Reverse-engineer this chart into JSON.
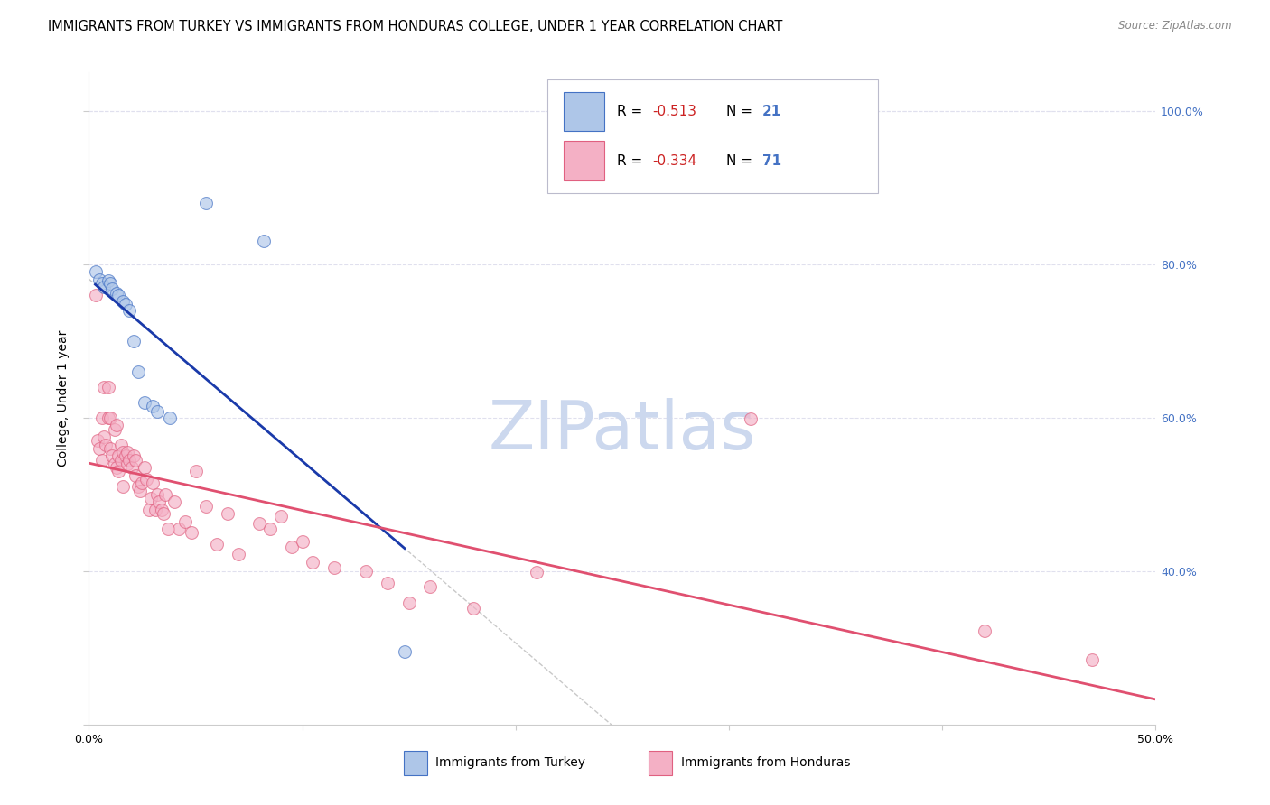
{
  "title": "IMMIGRANTS FROM TURKEY VS IMMIGRANTS FROM HONDURAS COLLEGE, UNDER 1 YEAR CORRELATION CHART",
  "source": "Source: ZipAtlas.com",
  "ylabel": "College, Under 1 year",
  "xlim": [
    0.0,
    0.5
  ],
  "ylim": [
    0.2,
    1.05
  ],
  "xtick_vals": [
    0.0,
    0.1,
    0.2,
    0.3,
    0.4,
    0.5
  ],
  "xtick_labels": [
    "0.0%",
    "",
    "",
    "",
    "",
    "50.0%"
  ],
  "ytick_left_vals": [
    0.2,
    0.4,
    0.6,
    0.8,
    1.0
  ],
  "ytick_left_labels": [
    "",
    "",
    "",
    "",
    ""
  ],
  "ytick_right_vals": [
    1.0,
    0.8,
    0.6,
    0.4
  ],
  "ytick_right_labels": [
    "100.0%",
    "80.0%",
    "60.0%",
    "40.0%"
  ],
  "right_tick_color": "#4472c4",
  "turkey_color": "#aec6e8",
  "turkey_edge_color": "#4472c4",
  "honduras_color": "#f4b0c5",
  "honduras_edge_color": "#e06080",
  "turkey_R": "-0.513",
  "turkey_N": "21",
  "honduras_R": "-0.334",
  "honduras_N": "71",
  "turkey_line_color": "#1a3aaa",
  "honduras_line_color": "#e05070",
  "watermark": "ZIPatlas",
  "watermark_color": "#ccd8ee",
  "grid_color": "#e0e0ee",
  "background_color": "#ffffff",
  "scatter_size": 100,
  "scatter_alpha": 0.65,
  "line_width": 2.0,
  "title_fontsize": 10.5,
  "tick_fontsize": 9,
  "legend_label_turkey": "Immigrants from Turkey",
  "legend_label_honduras": "Immigrants from Honduras",
  "turkey_scatter_x": [
    0.003,
    0.005,
    0.006,
    0.007,
    0.009,
    0.01,
    0.011,
    0.013,
    0.014,
    0.016,
    0.017,
    0.019,
    0.021,
    0.023,
    0.026,
    0.03,
    0.032,
    0.038,
    0.055,
    0.082,
    0.148
  ],
  "turkey_scatter_y": [
    0.79,
    0.78,
    0.775,
    0.77,
    0.778,
    0.775,
    0.768,
    0.762,
    0.76,
    0.752,
    0.748,
    0.74,
    0.7,
    0.66,
    0.62,
    0.615,
    0.608,
    0.6,
    0.88,
    0.83,
    0.295
  ],
  "honduras_scatter_x": [
    0.003,
    0.004,
    0.005,
    0.006,
    0.006,
    0.007,
    0.007,
    0.008,
    0.009,
    0.009,
    0.01,
    0.01,
    0.011,
    0.012,
    0.012,
    0.013,
    0.013,
    0.014,
    0.014,
    0.015,
    0.015,
    0.016,
    0.016,
    0.017,
    0.018,
    0.018,
    0.019,
    0.02,
    0.021,
    0.022,
    0.022,
    0.023,
    0.024,
    0.025,
    0.026,
    0.027,
    0.028,
    0.029,
    0.03,
    0.031,
    0.032,
    0.033,
    0.034,
    0.035,
    0.036,
    0.037,
    0.04,
    0.042,
    0.045,
    0.048,
    0.05,
    0.055,
    0.06,
    0.065,
    0.07,
    0.08,
    0.085,
    0.09,
    0.095,
    0.1,
    0.105,
    0.115,
    0.13,
    0.14,
    0.15,
    0.16,
    0.18,
    0.21,
    0.31,
    0.42,
    0.47
  ],
  "honduras_scatter_y": [
    0.76,
    0.57,
    0.56,
    0.6,
    0.545,
    0.575,
    0.64,
    0.565,
    0.64,
    0.6,
    0.56,
    0.6,
    0.55,
    0.585,
    0.54,
    0.535,
    0.59,
    0.53,
    0.55,
    0.545,
    0.565,
    0.51,
    0.555,
    0.55,
    0.54,
    0.555,
    0.545,
    0.535,
    0.55,
    0.525,
    0.545,
    0.51,
    0.505,
    0.515,
    0.535,
    0.52,
    0.48,
    0.495,
    0.515,
    0.48,
    0.5,
    0.49,
    0.48,
    0.475,
    0.5,
    0.455,
    0.49,
    0.455,
    0.465,
    0.45,
    0.53,
    0.485,
    0.435,
    0.475,
    0.422,
    0.462,
    0.455,
    0.472,
    0.432,
    0.438,
    0.412,
    0.405,
    0.4,
    0.385,
    0.358,
    0.38,
    0.352,
    0.398,
    0.598,
    0.322,
    0.285
  ]
}
